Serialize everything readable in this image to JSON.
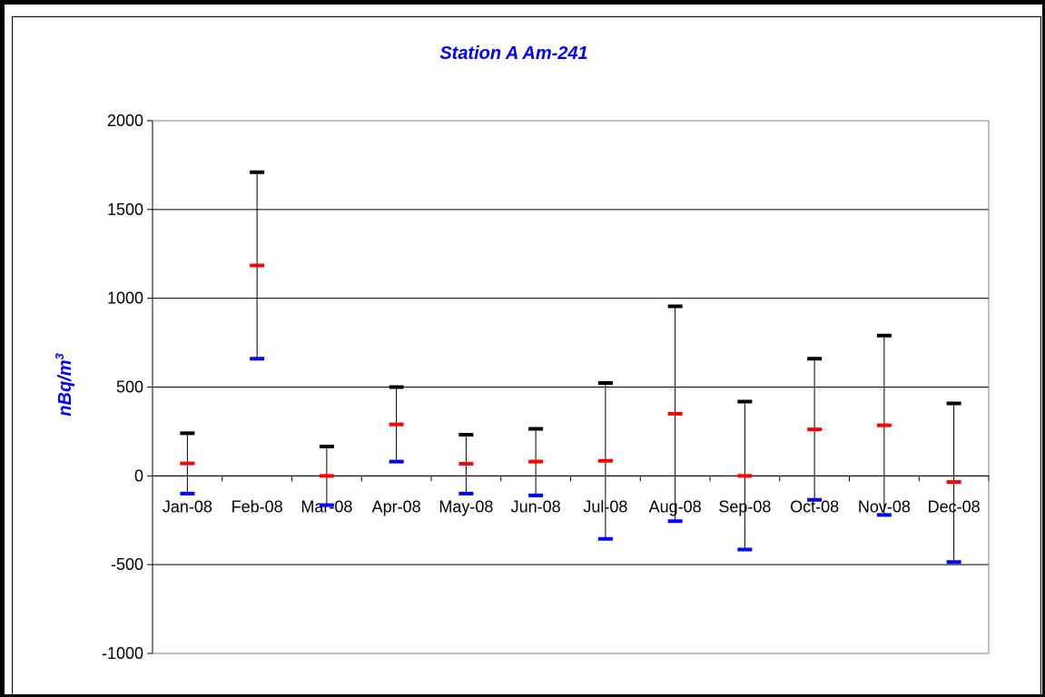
{
  "chart_data": {
    "type": "scatter",
    "title": "Station A Am-241",
    "ylabel": "nBq/m",
    "ylabel_superscript": "3",
    "xlabel": "",
    "ylim": [
      -1000,
      2000
    ],
    "yticks": [
      -1000,
      -500,
      0,
      500,
      1000,
      1500,
      2000
    ],
    "ytick_labels": [
      "-1000",
      "-500",
      "0",
      "500",
      "1000",
      "1500",
      "2000"
    ],
    "grid": true,
    "legend": "none",
    "categories": [
      "Jan-08",
      "Feb-08",
      "Mar-08",
      "Apr-08",
      "May-08",
      "Jun-08",
      "Jul-08",
      "Aug-08",
      "Sep-08",
      "Oct-08",
      "Nov-08",
      "Dec-08"
    ],
    "series": [
      {
        "color": "#000000",
        "values": [
          240,
          1710,
          165,
          500,
          232,
          265,
          523,
          955,
          418,
          660,
          790,
          408
        ]
      },
      {
        "color": "#ff0000",
        "values": [
          70,
          1185,
          0,
          290,
          68,
          80,
          85,
          350,
          0,
          262,
          285,
          -35
        ]
      },
      {
        "color": "#0000ff",
        "values": [
          -100,
          660,
          -165,
          80,
          -100,
          -110,
          -355,
          -255,
          -415,
          -135,
          -220,
          -485
        ]
      }
    ]
  }
}
